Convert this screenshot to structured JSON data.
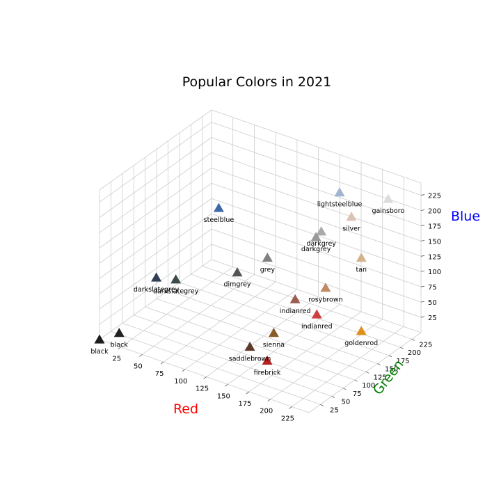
{
  "chart_data": {
    "type": "scatter3d",
    "title": "Popular Colors in 2021",
    "xlabel": "Red",
    "ylabel": "Green",
    "zlabel": "Blue",
    "xlim": [
      0,
      245
    ],
    "ylim": [
      0,
      245
    ],
    "zlim": [
      0,
      245
    ],
    "x_ticks": [
      25,
      50,
      75,
      100,
      125,
      150,
      175,
      200,
      225
    ],
    "y_ticks": [
      25,
      50,
      75,
      100,
      125,
      150,
      175,
      200,
      225
    ],
    "z_ticks": [
      25,
      50,
      75,
      100,
      125,
      150,
      175,
      200,
      225
    ],
    "grid": true,
    "marker": "triangle",
    "colors": {
      "xlabel": "#ff0000",
      "ylabel": "#008000",
      "zlabel": "#0000ff",
      "grid": "#cccccc"
    },
    "points": [
      {
        "label": "black",
        "x": 0,
        "y": 0,
        "z": 0,
        "color": "#1c1c1c"
      },
      {
        "label": "black",
        "x": 15,
        "y": 15,
        "z": 10,
        "color": "#222222"
      },
      {
        "label": "firebrick",
        "x": 178,
        "y": 34,
        "z": 34,
        "color": "#b22222"
      },
      {
        "label": "saddlebrown",
        "x": 139,
        "y": 69,
        "z": 19,
        "color": "#5e3a2a"
      },
      {
        "label": "sienna",
        "x": 160,
        "y": 82,
        "z": 45,
        "color": "#8b5a2b"
      },
      {
        "label": "indianred",
        "x": 205,
        "y": 92,
        "z": 92,
        "color": "#cd4040"
      },
      {
        "label": "goldenrod",
        "x": 218,
        "y": 165,
        "z": 32,
        "color": "#e0901a"
      },
      {
        "label": "darkslategrey",
        "x": 47,
        "y": 79,
        "z": 79,
        "color": "#3d4a4a"
      },
      {
        "label": "darkslategrey",
        "x": 37,
        "y": 55,
        "z": 90,
        "color": "#2f3d55"
      },
      {
        "label": "dimgrey",
        "x": 105,
        "y": 105,
        "z": 105,
        "color": "#555555"
      },
      {
        "label": "indianred",
        "x": 170,
        "y": 110,
        "z": 90,
        "color": "#9a5e4e"
      },
      {
        "label": "grey",
        "x": 128,
        "y": 128,
        "z": 128,
        "color": "#808080"
      },
      {
        "label": "rosybrown",
        "x": 188,
        "y": 143,
        "z": 100,
        "color": "#c08a62"
      },
      {
        "label": "steelblue",
        "x": 70,
        "y": 130,
        "z": 180,
        "color": "#4169a8"
      },
      {
        "label": "darkgrey",
        "x": 169,
        "y": 169,
        "z": 169,
        "color": "#a9a9a9"
      },
      {
        "label": "darkgrey",
        "x": 165,
        "y": 165,
        "z": 160,
        "color": "#999999"
      },
      {
        "label": "tan",
        "x": 210,
        "y": 180,
        "z": 140,
        "color": "#d2b48c"
      },
      {
        "label": "lightsteelblue",
        "x": 176,
        "y": 196,
        "z": 222,
        "color": "#a0b4d0"
      },
      {
        "label": "silver",
        "x": 192,
        "y": 192,
        "z": 192,
        "color": "#dcc2b4"
      },
      {
        "label": "gainsboro",
        "x": 220,
        "y": 220,
        "z": 220,
        "color": "#dcdcdc"
      }
    ]
  }
}
